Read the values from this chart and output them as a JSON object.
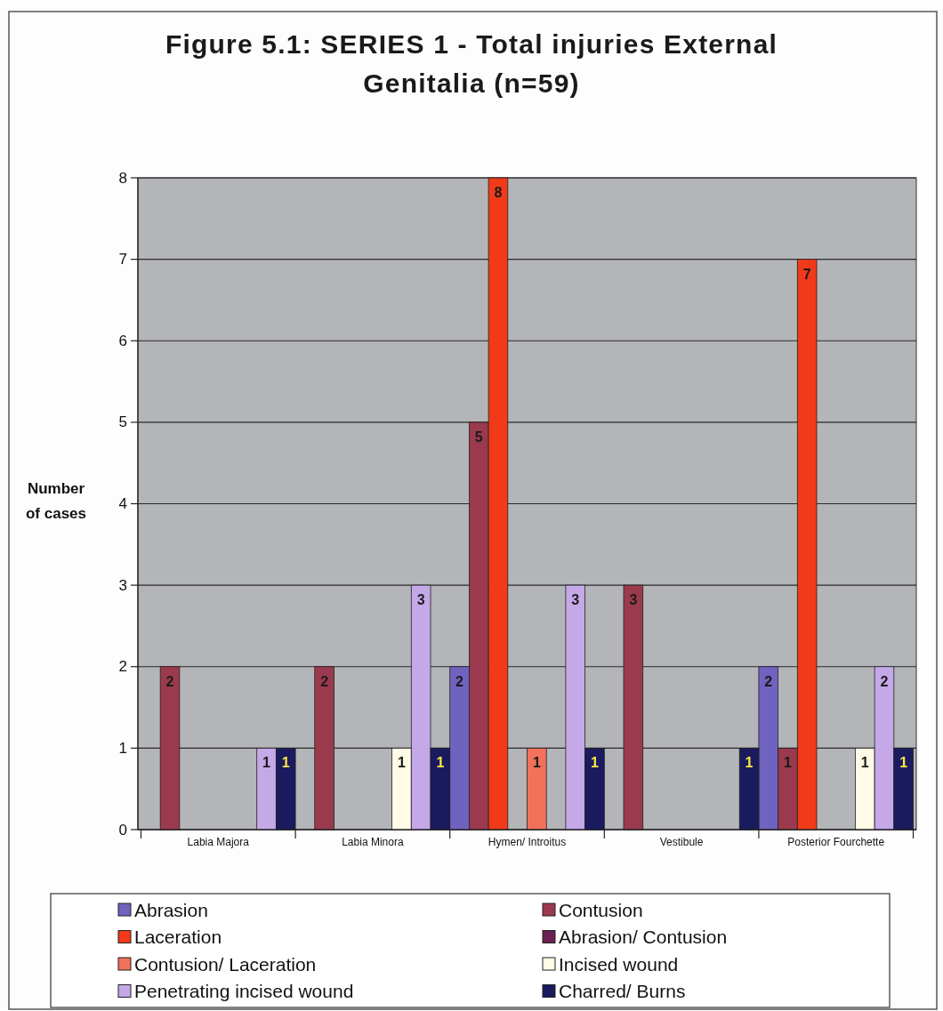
{
  "chart_data": {
    "type": "bar",
    "title": "Figure 5.1: SERIES 1 - Total injuries External Genitalia (n=59)",
    "ylabel": "Number of cases",
    "categories": [
      "Labia Majora",
      "Labia Minora",
      "Hymen/ Introitus",
      "Vestibule",
      "Posterior Fourchette"
    ],
    "series": [
      {
        "name": "Abrasion",
        "color": "#7063c0",
        "values": [
          0,
          0,
          2,
          0,
          2
        ],
        "value_labels": [
          null,
          null,
          "2",
          null,
          "2"
        ]
      },
      {
        "name": "Contusion",
        "color": "#9b3a4e",
        "values": [
          2,
          2,
          5,
          3,
          1
        ],
        "value_labels": [
          "2",
          "2",
          "5",
          "3",
          "1"
        ]
      },
      {
        "name": "Laceration",
        "color": "#f03a1a",
        "values": [
          0,
          0,
          8,
          0,
          7
        ],
        "value_labels": [
          null,
          null,
          "8",
          null,
          "7"
        ]
      },
      {
        "name": "Abrasion/ Contusion",
        "color": "#6a2050",
        "values": [
          0,
          0,
          0,
          0,
          0
        ],
        "value_labels": [
          null,
          null,
          null,
          null,
          null
        ]
      },
      {
        "name": "Contusion/ Laceration",
        "color": "#f2715a",
        "values": [
          0,
          0,
          1,
          0,
          0
        ],
        "value_labels": [
          null,
          null,
          "1",
          null,
          null
        ]
      },
      {
        "name": "Incised wound",
        "color": "#fffbe6",
        "values": [
          0,
          1,
          0,
          0,
          1
        ],
        "value_labels": [
          null,
          "1",
          null,
          null,
          "1"
        ]
      },
      {
        "name": "Penetrating incised wound",
        "color": "#c4a8e8",
        "values": [
          1,
          3,
          3,
          0,
          2
        ],
        "value_labels": [
          "1",
          "3",
          "3",
          null,
          "2"
        ]
      },
      {
        "name": "Charred/ Burns",
        "color": "#1a1a5e",
        "values": [
          1,
          1,
          1,
          1,
          1
        ],
        "value_labels": [
          "1",
          "1",
          "1",
          "1",
          "1"
        ]
      }
    ],
    "ylim": [
      0,
      8
    ],
    "yticks": [
      0,
      1,
      2,
      3,
      4,
      5,
      6,
      7,
      8
    ],
    "grid": "y",
    "legend": "bottom"
  }
}
